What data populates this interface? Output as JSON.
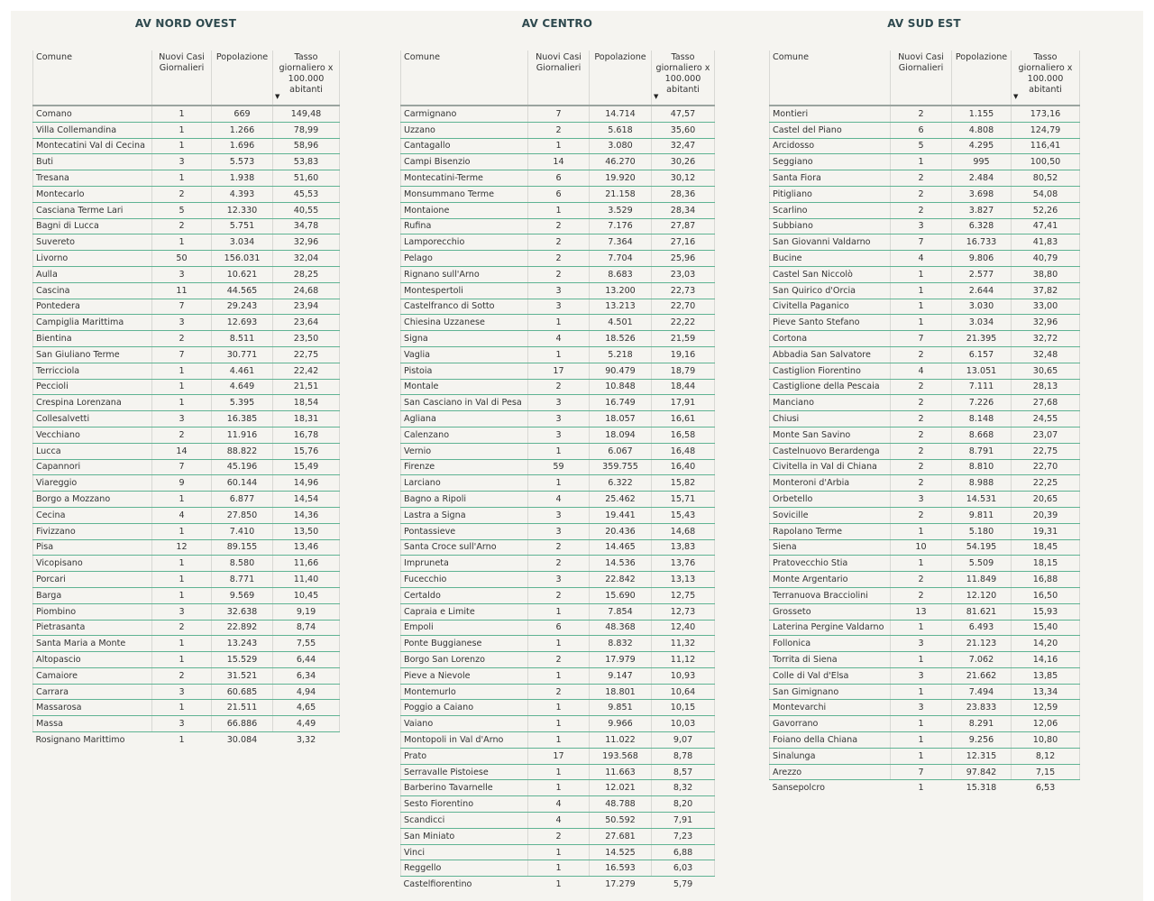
{
  "headers": {
    "comune": "Comune",
    "cases": "Nuovi Casi Giornalieri",
    "population": "Popolazione",
    "rate": "Tasso giornaliero x 100.000 abitanti"
  },
  "tables": [
    {
      "title": "AV NORD OVEST",
      "rows": [
        [
          "Comano",
          "1",
          "669",
          "149,48"
        ],
        [
          "Villa Collemandina",
          "1",
          "1.266",
          "78,99"
        ],
        [
          "Montecatini Val di Cecina",
          "1",
          "1.696",
          "58,96"
        ],
        [
          "Buti",
          "3",
          "5.573",
          "53,83"
        ],
        [
          "Tresana",
          "1",
          "1.938",
          "51,60"
        ],
        [
          "Montecarlo",
          "2",
          "4.393",
          "45,53"
        ],
        [
          "Casciana Terme Lari",
          "5",
          "12.330",
          "40,55"
        ],
        [
          "Bagni di Lucca",
          "2",
          "5.751",
          "34,78"
        ],
        [
          "Suvereto",
          "1",
          "3.034",
          "32,96"
        ],
        [
          "Livorno",
          "50",
          "156.031",
          "32,04"
        ],
        [
          "Aulla",
          "3",
          "10.621",
          "28,25"
        ],
        [
          "Cascina",
          "11",
          "44.565",
          "24,68"
        ],
        [
          "Pontedera",
          "7",
          "29.243",
          "23,94"
        ],
        [
          "Campiglia Marittima",
          "3",
          "12.693",
          "23,64"
        ],
        [
          "Bientina",
          "2",
          "8.511",
          "23,50"
        ],
        [
          "San Giuliano Terme",
          "7",
          "30.771",
          "22,75"
        ],
        [
          "Terricciola",
          "1",
          "4.461",
          "22,42"
        ],
        [
          "Peccioli",
          "1",
          "4.649",
          "21,51"
        ],
        [
          "Crespina Lorenzana",
          "1",
          "5.395",
          "18,54"
        ],
        [
          "Collesalvetti",
          "3",
          "16.385",
          "18,31"
        ],
        [
          "Vecchiano",
          "2",
          "11.916",
          "16,78"
        ],
        [
          "Lucca",
          "14",
          "88.822",
          "15,76"
        ],
        [
          "Capannori",
          "7",
          "45.196",
          "15,49"
        ],
        [
          "Viareggio",
          "9",
          "60.144",
          "14,96"
        ],
        [
          "Borgo a Mozzano",
          "1",
          "6.877",
          "14,54"
        ],
        [
          "Cecina",
          "4",
          "27.850",
          "14,36"
        ],
        [
          "Fivizzano",
          "1",
          "7.410",
          "13,50"
        ],
        [
          "Pisa",
          "12",
          "89.155",
          "13,46"
        ],
        [
          "Vicopisano",
          "1",
          "8.580",
          "11,66"
        ],
        [
          "Porcari",
          "1",
          "8.771",
          "11,40"
        ],
        [
          "Barga",
          "1",
          "9.569",
          "10,45"
        ],
        [
          "Piombino",
          "3",
          "32.638",
          "9,19"
        ],
        [
          "Pietrasanta",
          "2",
          "22.892",
          "8,74"
        ],
        [
          "Santa Maria a Monte",
          "1",
          "13.243",
          "7,55"
        ],
        [
          "Altopascio",
          "1",
          "15.529",
          "6,44"
        ],
        [
          "Camaiore",
          "2",
          "31.521",
          "6,34"
        ],
        [
          "Carrara",
          "3",
          "60.685",
          "4,94"
        ],
        [
          "Massarosa",
          "1",
          "21.511",
          "4,65"
        ],
        [
          "Massa",
          "3",
          "66.886",
          "4,49"
        ],
        [
          "Rosignano Marittimo",
          "1",
          "30.084",
          "3,32"
        ]
      ]
    },
    {
      "title": "AV CENTRO",
      "rows": [
        [
          "Carmignano",
          "7",
          "14.714",
          "47,57"
        ],
        [
          "Uzzano",
          "2",
          "5.618",
          "35,60"
        ],
        [
          "Cantagallo",
          "1",
          "3.080",
          "32,47"
        ],
        [
          "Campi Bisenzio",
          "14",
          "46.270",
          "30,26"
        ],
        [
          "Montecatini-Terme",
          "6",
          "19.920",
          "30,12"
        ],
        [
          "Monsummano Terme",
          "6",
          "21.158",
          "28,36"
        ],
        [
          "Montaione",
          "1",
          "3.529",
          "28,34"
        ],
        [
          "Rufina",
          "2",
          "7.176",
          "27,87"
        ],
        [
          "Lamporecchio",
          "2",
          "7.364",
          "27,16"
        ],
        [
          "Pelago",
          "2",
          "7.704",
          "25,96"
        ],
        [
          "Rignano sull'Arno",
          "2",
          "8.683",
          "23,03"
        ],
        [
          "Montespertoli",
          "3",
          "13.200",
          "22,73"
        ],
        [
          "Castelfranco di Sotto",
          "3",
          "13.213",
          "22,70"
        ],
        [
          "Chiesina Uzzanese",
          "1",
          "4.501",
          "22,22"
        ],
        [
          "Signa",
          "4",
          "18.526",
          "21,59"
        ],
        [
          "Vaglia",
          "1",
          "5.218",
          "19,16"
        ],
        [
          "Pistoia",
          "17",
          "90.479",
          "18,79"
        ],
        [
          "Montale",
          "2",
          "10.848",
          "18,44"
        ],
        [
          "San Casciano in Val di Pesa",
          "3",
          "16.749",
          "17,91"
        ],
        [
          "Agliana",
          "3",
          "18.057",
          "16,61"
        ],
        [
          "Calenzano",
          "3",
          "18.094",
          "16,58"
        ],
        [
          "Vernio",
          "1",
          "6.067",
          "16,48"
        ],
        [
          "Firenze",
          "59",
          "359.755",
          "16,40"
        ],
        [
          "Larciano",
          "1",
          "6.322",
          "15,82"
        ],
        [
          "Bagno a Ripoli",
          "4",
          "25.462",
          "15,71"
        ],
        [
          "Lastra a Signa",
          "3",
          "19.441",
          "15,43"
        ],
        [
          "Pontassieve",
          "3",
          "20.436",
          "14,68"
        ],
        [
          "Santa Croce sull'Arno",
          "2",
          "14.465",
          "13,83"
        ],
        [
          "Impruneta",
          "2",
          "14.536",
          "13,76"
        ],
        [
          "Fucecchio",
          "3",
          "22.842",
          "13,13"
        ],
        [
          "Certaldo",
          "2",
          "15.690",
          "12,75"
        ],
        [
          "Capraia e Limite",
          "1",
          "7.854",
          "12,73"
        ],
        [
          "Empoli",
          "6",
          "48.368",
          "12,40"
        ],
        [
          "Ponte Buggianese",
          "1",
          "8.832",
          "11,32"
        ],
        [
          "Borgo San Lorenzo",
          "2",
          "17.979",
          "11,12"
        ],
        [
          "Pieve a Nievole",
          "1",
          "9.147",
          "10,93"
        ],
        [
          "Montemurlo",
          "2",
          "18.801",
          "10,64"
        ],
        [
          "Poggio a Caiano",
          "1",
          "9.851",
          "10,15"
        ],
        [
          "Vaiano",
          "1",
          "9.966",
          "10,03"
        ],
        [
          "Montopoli in Val d'Arno",
          "1",
          "11.022",
          "9,07"
        ],
        [
          "Prato",
          "17",
          "193.568",
          "8,78"
        ],
        [
          "Serravalle Pistoiese",
          "1",
          "11.663",
          "8,57"
        ],
        [
          "Barberino Tavarnelle",
          "1",
          "12.021",
          "8,32"
        ],
        [
          "Sesto Fiorentino",
          "4",
          "48.788",
          "8,20"
        ],
        [
          "Scandicci",
          "4",
          "50.592",
          "7,91"
        ],
        [
          "San Miniato",
          "2",
          "27.681",
          "7,23"
        ],
        [
          "Vinci",
          "1",
          "14.525",
          "6,88"
        ],
        [
          "Reggello",
          "1",
          "16.593",
          "6,03"
        ],
        [
          "Castelfiorentino",
          "1",
          "17.279",
          "5,79"
        ]
      ]
    },
    {
      "title": "AV SUD EST",
      "rows": [
        [
          "Montieri",
          "2",
          "1.155",
          "173,16"
        ],
        [
          "Castel del Piano",
          "6",
          "4.808",
          "124,79"
        ],
        [
          "Arcidosso",
          "5",
          "4.295",
          "116,41"
        ],
        [
          "Seggiano",
          "1",
          "995",
          "100,50"
        ],
        [
          "Santa Fiora",
          "2",
          "2.484",
          "80,52"
        ],
        [
          "Pitigliano",
          "2",
          "3.698",
          "54,08"
        ],
        [
          "Scarlino",
          "2",
          "3.827",
          "52,26"
        ],
        [
          "Subbiano",
          "3",
          "6.328",
          "47,41"
        ],
        [
          "San Giovanni Valdarno",
          "7",
          "16.733",
          "41,83"
        ],
        [
          "Bucine",
          "4",
          "9.806",
          "40,79"
        ],
        [
          "Castel San Niccolò",
          "1",
          "2.577",
          "38,80"
        ],
        [
          "San Quirico d'Orcia",
          "1",
          "2.644",
          "37,82"
        ],
        [
          "Civitella Paganico",
          "1",
          "3.030",
          "33,00"
        ],
        [
          "Pieve Santo Stefano",
          "1",
          "3.034",
          "32,96"
        ],
        [
          "Cortona",
          "7",
          "21.395",
          "32,72"
        ],
        [
          "Abbadia San Salvatore",
          "2",
          "6.157",
          "32,48"
        ],
        [
          "Castiglion Fiorentino",
          "4",
          "13.051",
          "30,65"
        ],
        [
          "Castiglione della Pescaia",
          "2",
          "7.111",
          "28,13"
        ],
        [
          "Manciano",
          "2",
          "7.226",
          "27,68"
        ],
        [
          "Chiusi",
          "2",
          "8.148",
          "24,55"
        ],
        [
          "Monte San Savino",
          "2",
          "8.668",
          "23,07"
        ],
        [
          "Castelnuovo Berardenga",
          "2",
          "8.791",
          "22,75"
        ],
        [
          "Civitella in Val di Chiana",
          "2",
          "8.810",
          "22,70"
        ],
        [
          "Monteroni d'Arbia",
          "2",
          "8.988",
          "22,25"
        ],
        [
          "Orbetello",
          "3",
          "14.531",
          "20,65"
        ],
        [
          "Sovicille",
          "2",
          "9.811",
          "20,39"
        ],
        [
          "Rapolano Terme",
          "1",
          "5.180",
          "19,31"
        ],
        [
          "Siena",
          "10",
          "54.195",
          "18,45"
        ],
        [
          "Pratovecchio Stia",
          "1",
          "5.509",
          "18,15"
        ],
        [
          "Monte Argentario",
          "2",
          "11.849",
          "16,88"
        ],
        [
          "Terranuova Bracciolini",
          "2",
          "12.120",
          "16,50"
        ],
        [
          "Grosseto",
          "13",
          "81.621",
          "15,93"
        ],
        [
          "Laterina Pergine Valdarno",
          "1",
          "6.493",
          "15,40"
        ],
        [
          "Follonica",
          "3",
          "21.123",
          "14,20"
        ],
        [
          "Torrita di Siena",
          "1",
          "7.062",
          "14,16"
        ],
        [
          "Colle di Val d'Elsa",
          "3",
          "21.662",
          "13,85"
        ],
        [
          "San Gimignano",
          "1",
          "7.494",
          "13,34"
        ],
        [
          "Montevarchi",
          "3",
          "23.833",
          "12,59"
        ],
        [
          "Gavorrano",
          "1",
          "8.291",
          "12,06"
        ],
        [
          "Foiano della Chiana",
          "1",
          "9.256",
          "10,80"
        ],
        [
          "Sinalunga",
          "1",
          "12.315",
          "8,12"
        ],
        [
          "Arezzo",
          "7",
          "97.842",
          "7,15"
        ],
        [
          "Sansepolcro",
          "1",
          "15.318",
          "6,53"
        ]
      ]
    }
  ]
}
